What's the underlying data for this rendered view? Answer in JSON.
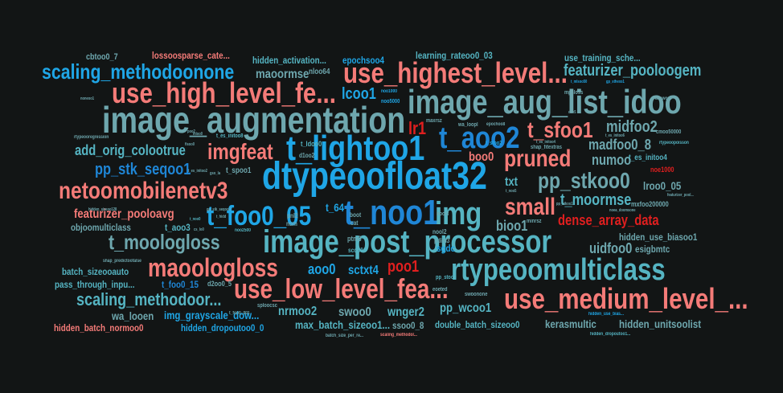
{
  "words": [
    {
      "text": "image_aug_list_idoo",
      "color": "#6ea7ae"
    },
    {
      "text": "image_augmentation",
      "color": "#6ea7ae"
    },
    {
      "text": "dtypeoofloat32",
      "color": "#1fa6e6"
    },
    {
      "text": "rtypeoomulticlass",
      "color": "#55b4c2"
    },
    {
      "text": "image_post_processor",
      "color": "#55b4c2"
    },
    {
      "text": "use_highest_level...",
      "color": "#f47b78"
    },
    {
      "text": "use_high_level_fe...",
      "color": "#f47b78"
    },
    {
      "text": "use_medium_level_...",
      "color": "#f47b78"
    },
    {
      "text": "use_low_level_fea...",
      "color": "#f47b78"
    },
    {
      "text": "netoomobilenetv3",
      "color": "#f47b78"
    },
    {
      "text": "maoologloss",
      "color": "#f47b78"
    },
    {
      "text": "t_lightoo1",
      "color": "#1fa6e6"
    },
    {
      "text": "t_noo1",
      "color": "#1f86d6"
    },
    {
      "text": "t_foo0_05",
      "color": "#1fa6e6"
    },
    {
      "text": "img",
      "color": "#55b4c2"
    },
    {
      "text": "t_aoo2",
      "color": "#1f86d6"
    },
    {
      "text": "pruned",
      "color": "#f47b78"
    },
    {
      "text": "small",
      "color": "#f47b78"
    },
    {
      "text": "imgfeat",
      "color": "#f47b78"
    },
    {
      "text": "pp_stkoo0",
      "color": "#6ea7ae"
    },
    {
      "text": "t_sfoo1",
      "color": "#f47b78"
    },
    {
      "text": "t_moologloss",
      "color": "#6ea7ae"
    },
    {
      "text": "scaling_methodoonone",
      "color": "#1fa6e6"
    },
    {
      "text": "scaling_methodoor...",
      "color": "#55b4c2"
    },
    {
      "text": "featurizer_pooloogem",
      "color": "#55b4c2"
    },
    {
      "text": "featurizer_pooloavg",
      "color": "#f47b78"
    },
    {
      "text": "dense_array_data",
      "color": "#e01f1f"
    },
    {
      "text": "t_moormse",
      "color": "#55b4c2"
    },
    {
      "text": "add_orig_colootrue",
      "color": "#55b4c2"
    },
    {
      "text": "pp_stk_seqoo1",
      "color": "#1f86d6"
    },
    {
      "text": "midfoo2",
      "color": "#6ea7ae"
    },
    {
      "text": "madfoo0_8",
      "color": "#6ea7ae"
    },
    {
      "text": "numoo",
      "color": "#6ea7ae"
    },
    {
      "text": "lr1",
      "color": "#e01f1f"
    },
    {
      "text": "lcoo1",
      "color": "#1fa6e6"
    },
    {
      "text": "maoormse",
      "color": "#6ea7ae"
    },
    {
      "text": "aoo0",
      "color": "#1fa6e6"
    },
    {
      "text": "poo1",
      "color": "#e01f1f"
    },
    {
      "text": "sctxt4",
      "color": "#1fa6e6"
    },
    {
      "text": "bioo1",
      "color": "#6ea7ae"
    },
    {
      "text": "boo0",
      "color": "#f47b78"
    },
    {
      "text": "txt",
      "color": "#55b4c2"
    },
    {
      "text": "uidfoo0",
      "color": "#6ea7ae"
    },
    {
      "text": "lroo0_05",
      "color": "#6ea7ae"
    },
    {
      "text": "nrmoo2",
      "color": "#55b4c2"
    },
    {
      "text": "swoo0",
      "color": "#6ea7ae"
    },
    {
      "text": "wnger2",
      "color": "#55b4c2"
    },
    {
      "text": "pp_wcoo1",
      "color": "#55b4c2"
    },
    {
      "text": "kerasmultic",
      "color": "#6ea7ae"
    },
    {
      "text": "hidden_unitsoolist",
      "color": "#6ea7ae"
    },
    {
      "text": "hidden_use_biasoo1",
      "color": "#6ea7ae"
    },
    {
      "text": "esigbmtc",
      "color": "#6ea7ae"
    },
    {
      "text": "img_grayscale_dow...",
      "color": "#1fa6e6"
    },
    {
      "text": "wa_looen",
      "color": "#6ea7ae"
    },
    {
      "text": "t_foo0_15",
      "color": "#1f86d6"
    },
    {
      "text": "pass_through_inpu...",
      "color": "#55b4c2"
    },
    {
      "text": "batch_sizeooauto",
      "color": "#55b4c2"
    },
    {
      "text": "objoomulticlass",
      "color": "#6ea7ae"
    },
    {
      "text": "t_aoo3",
      "color": "#55b4c2"
    },
    {
      "text": "hidden_batch_normoo0",
      "color": "#f47b78"
    },
    {
      "text": "hidden_dropoutoo0_0",
      "color": "#1fa6e6"
    },
    {
      "text": "max_batch_sizeoo1...",
      "color": "#55b4c2"
    },
    {
      "text": "ssoo0_8",
      "color": "#6ea7ae"
    },
    {
      "text": "double_batch_sizeoo0",
      "color": "#55b4c2"
    },
    {
      "text": "cbtoo0_7",
      "color": "#6ea7ae"
    },
    {
      "text": "lossoosparse_cate...",
      "color": "#f47b78"
    },
    {
      "text": "hidden_activation...",
      "color": "#55b4c2"
    },
    {
      "text": "epochsoo4",
      "color": "#1fa6e6"
    },
    {
      "text": "learning_rateoo0_03",
      "color": "#55b4c2"
    },
    {
      "text": "use_training_sche...",
      "color": "#55b4c2"
    },
    {
      "text": "nloo64",
      "color": "#6ea7ae"
    },
    {
      "text": "t_spoo1",
      "color": "#6ea7ae"
    },
    {
      "text": "t_es_initoo4",
      "color": "#55b4c2"
    },
    {
      "text": "noe1000",
      "color": "#e01f1f"
    },
    {
      "text": "mxfoo200000",
      "color": "#6ea7ae"
    },
    {
      "text": "d2oo0_5",
      "color": "#6ea7ae"
    },
    {
      "text": "sgdc",
      "color": "#1fa6e6"
    },
    {
      "text": "t_64",
      "color": "#1fa6e6"
    },
    {
      "text": "t_ldoo0",
      "color": "#55b4c2"
    },
    {
      "text": "minrsz",
      "color": "#6ea7ae"
    },
    {
      "text": "maxrsz",
      "color": "#6ea7ae"
    },
    {
      "text": "ptm3",
      "color": "#6ea7ae"
    },
    {
      "text": "scoo10",
      "color": "#55b4c2"
    },
    {
      "text": "nool2",
      "color": "#6ea7ae"
    },
    {
      "text": "pdim3",
      "color": "#6ea7ae"
    },
    {
      "text": "nool3",
      "color": "#6ea7ae"
    },
    {
      "text": "noo5000",
      "color": "#1fa6e6"
    },
    {
      "text": "cat",
      "color": "#6ea7ae"
    },
    {
      "text": "boot",
      "color": "#6ea7ae"
    },
    {
      "text": "num",
      "color": "#6ea7ae"
    },
    {
      "text": "pnl2",
      "color": "#6ea7ae"
    },
    {
      "text": "d1oo2",
      "color": "#6ea7ae"
    },
    {
      "text": "sploocsc",
      "color": "#6ea7ae"
    },
    {
      "text": "swoonone",
      "color": "#6ea7ae"
    },
    {
      "text": "eoeted",
      "color": "#6ea7ae"
    },
    {
      "text": "pp_stoo0",
      "color": "#55b4c2"
    },
    {
      "text": "batch_size_per_re...",
      "color": "#6ea7ae"
    },
    {
      "text": "scaling_methodol...",
      "color": "#f47b78"
    },
    {
      "text": "hidden_use_bias...",
      "color": "#1fa6e6"
    },
    {
      "text": "hidden_dropoutoo1...",
      "color": "#55b4c2"
    },
    {
      "text": "t_sfoo2",
      "color": "#1fa6e6"
    },
    {
      "text": "t_es_initoo8",
      "color": "#55b4c2"
    },
    {
      "text": "shap_fitextras",
      "color": "#6ea7ae"
    },
    {
      "text": "mpsloss",
      "color": "#6ea7ae"
    },
    {
      "text": "cmoo50000",
      "color": "#6ea7ae"
    },
    {
      "text": "rtypeoopoisson",
      "color": "#55b4c2"
    },
    {
      "text": "aooword",
      "color": "#6ea7ae"
    },
    {
      "text": "rtypeooregression",
      "color": "#6ea7ae"
    },
    {
      "text": "shap_predictoofalse",
      "color": "#6ea7ae"
    },
    {
      "text": "hidden_sizeoo128",
      "color": "#6ea7ae"
    },
    {
      "text": "poo2",
      "color": "#6ea7ae"
    },
    {
      "text": "noneoo1",
      "color": "#6ea7ae"
    },
    {
      "text": "fisoo0",
      "color": "#6ea7ae"
    },
    {
      "text": "epochoo8",
      "color": "#6ea7ae"
    },
    {
      "text": "wa_loopl",
      "color": "#6ea7ae"
    },
    {
      "text": "noea_doomsone",
      "color": "#6ea7ae"
    },
    {
      "text": "t_mlsoo50",
      "color": "#1fa6e6"
    },
    {
      "text": "gp_sthexo1",
      "color": "#1fa6e6"
    },
    {
      "text": "cs_lo0",
      "color": "#6ea7ae"
    },
    {
      "text": "gso_la",
      "color": "#6ea7ae"
    },
    {
      "text": "t_hidd",
      "color": "#6ea7ae"
    },
    {
      "text": "mloo0",
      "color": "#6ea7ae"
    },
    {
      "text": "doe5",
      "color": "#6ea7ae"
    },
    {
      "text": "t_noo5",
      "color": "#6ea7ae"
    },
    {
      "text": "t_foo0_001",
      "color": "#6ea7ae"
    },
    {
      "text": "t_noo0",
      "color": "#55b4c2"
    },
    {
      "text": "pp_stkoo1",
      "color": "#6ea7ae"
    },
    {
      "text": "t_es_initoo4",
      "color": "#6ea7ae"
    },
    {
      "text": "t_es_initoo2",
      "color": "#6ea7ae"
    },
    {
      "text": "t_es_initoo6",
      "color": "#6ea7ae"
    },
    {
      "text": "noo2500",
      "color": "#55b4c2"
    },
    {
      "text": "noo1000",
      "color": "#1fa6e6"
    },
    {
      "text": "gp_stk_seqoo2",
      "color": "#6ea7ae"
    },
    {
      "text": "featurizer_pool...",
      "color": "#6ea7ae"
    }
  ]
}
